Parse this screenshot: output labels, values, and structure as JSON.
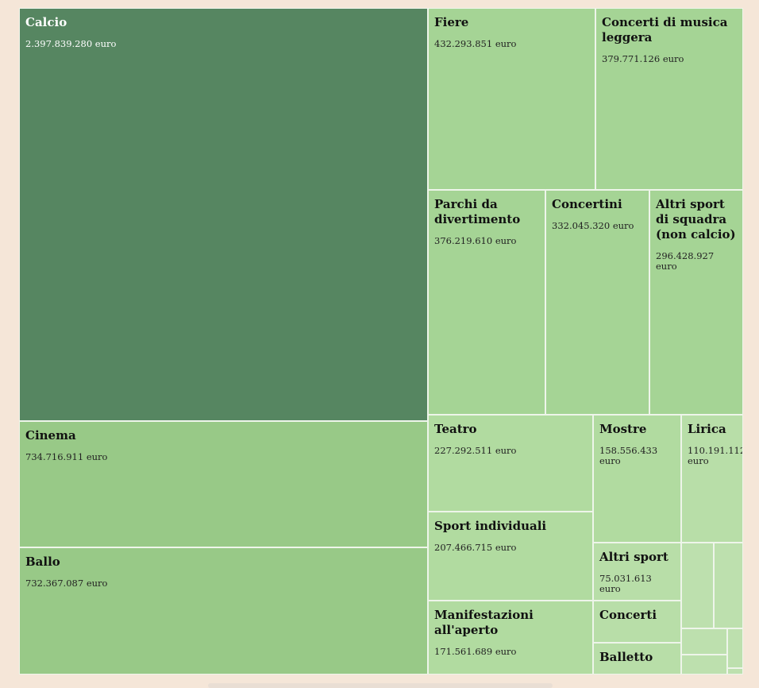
{
  "chart_data": {
    "type": "treemap",
    "currency_suffix": "euro",
    "items": [
      {
        "name": "Calcio",
        "value": 2397839280,
        "label": "2.397.839.280 euro",
        "color": "#568661"
      },
      {
        "name": "Cinema",
        "value": 734716911,
        "label": "734.716.911 euro",
        "color": "#98c987"
      },
      {
        "name": "Ballo",
        "value": 732367087,
        "label": "732.367.087 euro",
        "color": "#98c987"
      },
      {
        "name": "Fiere",
        "value": 432293851,
        "label": "432.293.851 euro",
        "color": "#a5d495"
      },
      {
        "name": "Concerti di musica leggera",
        "value": 379771126,
        "label": "379.771.126 euro",
        "color": "#a5d495"
      },
      {
        "name": "Parchi da divertimento",
        "value": 376219610,
        "label": "376.219.610 euro",
        "color": "#a5d495"
      },
      {
        "name": "Concertini",
        "value": 332045320,
        "label": "332.045.320 euro",
        "color": "#a5d495"
      },
      {
        "name": "Altri sport di squadra (non calcio)",
        "value": 296428927,
        "label": "296.428.927 euro",
        "color": "#a5d495"
      },
      {
        "name": "Teatro",
        "value": 227292511,
        "label": "227.292.511 euro",
        "color": "#b1dba0"
      },
      {
        "name": "Sport individuali",
        "value": 207466715,
        "label": "207.466.715 euro",
        "color": "#b1dba0"
      },
      {
        "name": "Manifestazioni all'aperto",
        "value": 171561689,
        "label": "171.561.689 euro",
        "color": "#b1dba0"
      },
      {
        "name": "Mostre",
        "value": 158556433,
        "label": "158.556.433 euro",
        "color": "#b1dba0"
      },
      {
        "name": "Lirica",
        "value": 110191112,
        "label": "110.191.112 euro",
        "color": "#b8dea8"
      },
      {
        "name": "Altri sport",
        "value": 75031613,
        "label": "75.031.613 euro",
        "color": "#b8dea8"
      },
      {
        "name": "Concerti",
        "value": null,
        "label": "",
        "color": "#b8dea8"
      },
      {
        "name": "Balletto",
        "value": null,
        "label": "",
        "color": "#b8dea8"
      },
      {
        "name": "",
        "value": null,
        "label": "",
        "color": "#bde0ae"
      },
      {
        "name": "",
        "value": null,
        "label": "",
        "color": "#bde0ae"
      },
      {
        "name": "",
        "value": null,
        "label": "",
        "color": "#bde0ae"
      },
      {
        "name": "",
        "value": null,
        "label": "",
        "color": "#bde0ae"
      },
      {
        "name": "",
        "value": null,
        "label": "",
        "color": "#bde0ae"
      },
      {
        "name": "",
        "value": null,
        "label": "",
        "color": "#bde0ae"
      }
    ]
  }
}
